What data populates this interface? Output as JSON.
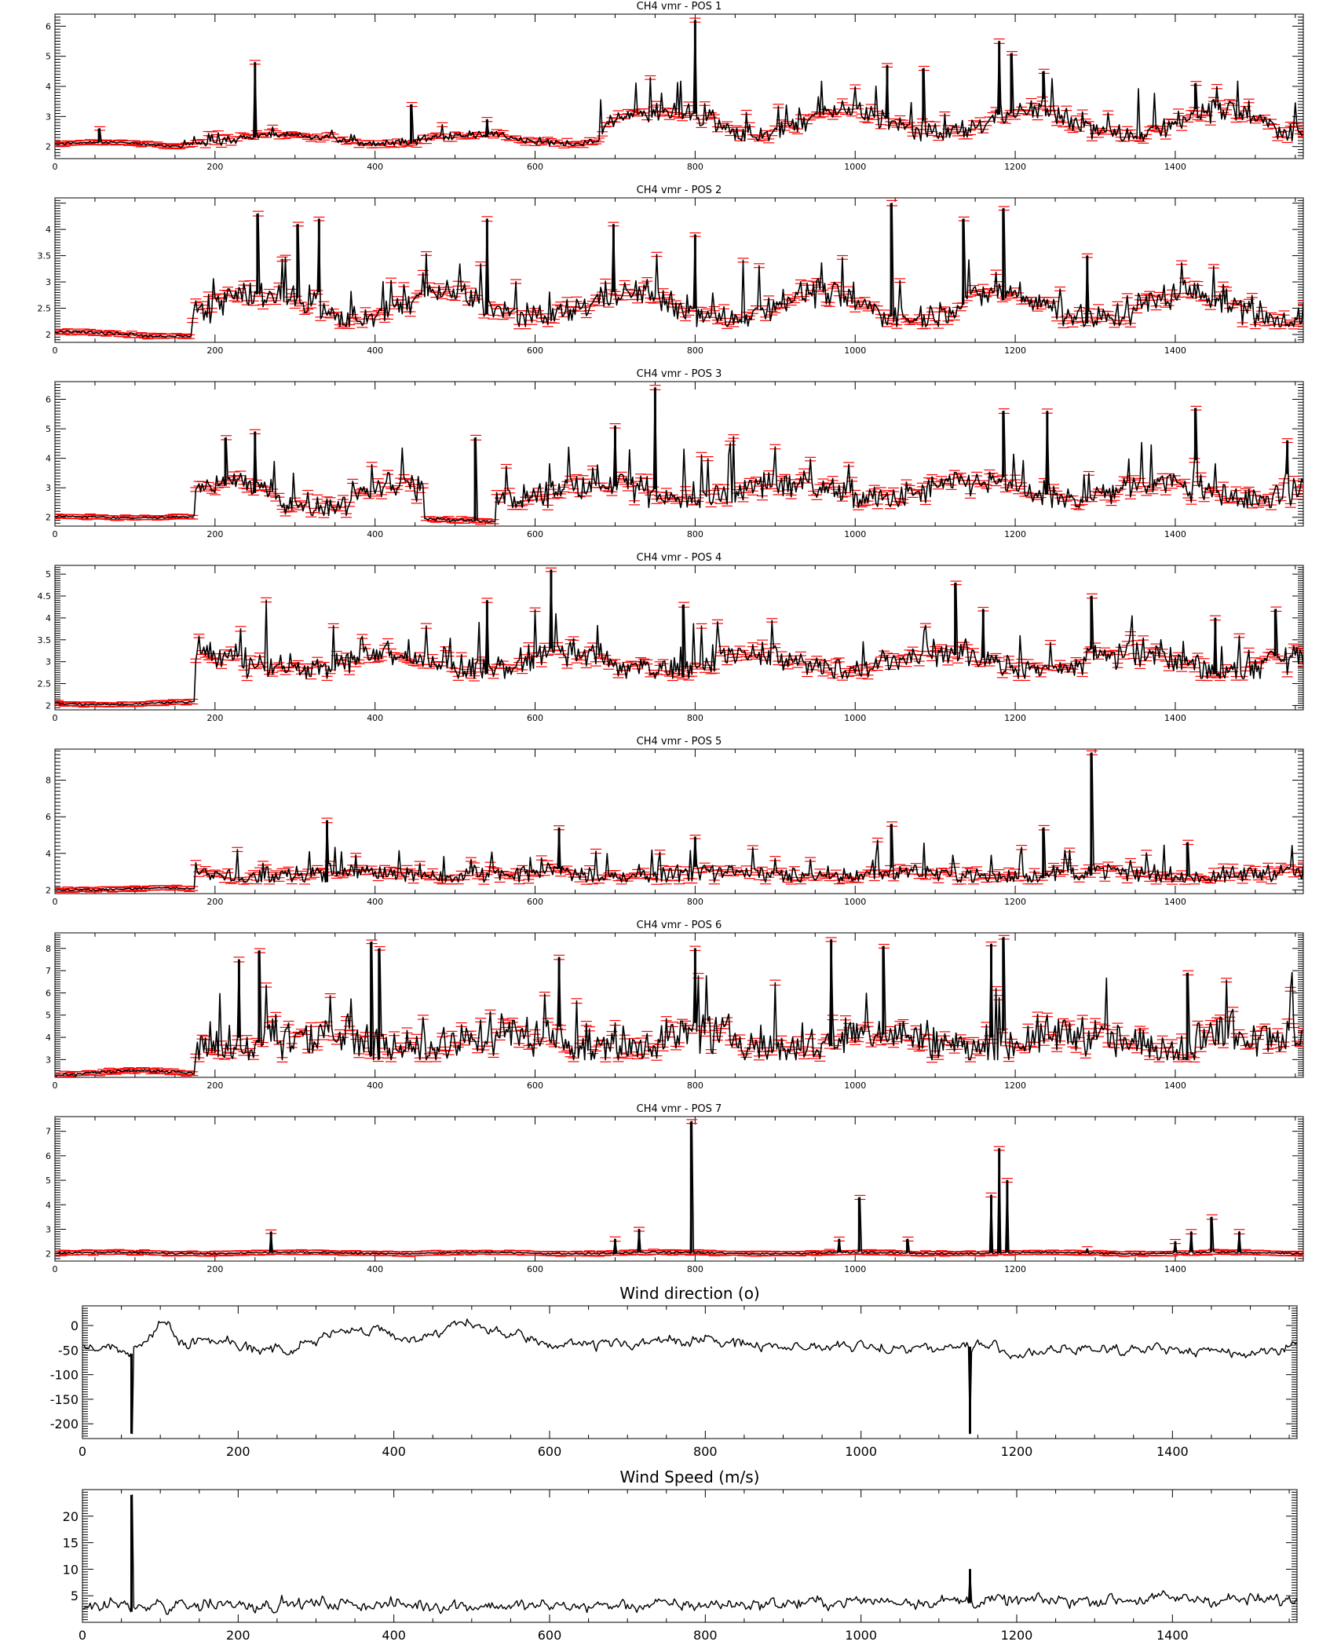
{
  "figure": {
    "background": "#ffffff",
    "line_color": "#000000",
    "errorbar_color": "#ff0000"
  },
  "chart_data": [
    {
      "type": "line",
      "title": "CH4 vmr - POS 1",
      "xlim": [
        0,
        1560
      ],
      "ylim": [
        1.6,
        6.4
      ],
      "xticks": [
        0,
        200,
        400,
        600,
        800,
        1000,
        1200,
        1400
      ],
      "yticks": [
        2,
        3,
        4,
        5,
        6
      ],
      "errorbars": true,
      "segments": [
        {
          "x": [
            0,
            160
          ],
          "y_range": [
            2.0,
            2.15
          ],
          "noise": 0.03
        },
        {
          "x": [
            160,
            680
          ],
          "y_range": [
            2.1,
            2.4
          ],
          "noise": 0.12
        },
        {
          "x": [
            680,
            1560
          ],
          "y_range": [
            2.4,
            3.2
          ],
          "noise": 0.35
        }
      ],
      "spikes": [
        [
          55,
          2.6
        ],
        [
          250,
          4.8
        ],
        [
          445,
          3.4
        ],
        [
          540,
          2.9
        ],
        [
          800,
          6.2
        ],
        [
          1040,
          4.7
        ],
        [
          1085,
          4.6
        ],
        [
          1180,
          5.5
        ],
        [
          1195,
          5.1
        ],
        [
          1235,
          4.5
        ],
        [
          1425,
          4.1
        ]
      ]
    },
    {
      "type": "line",
      "title": "CH4 vmr - POS 2",
      "xlim": [
        0,
        1560
      ],
      "ylim": [
        1.85,
        4.6
      ],
      "xticks": [
        0,
        200,
        400,
        600,
        800,
        1000,
        1200,
        1400
      ],
      "yticks": [
        2.0,
        2.5,
        3.0,
        3.5,
        4.0
      ],
      "errorbars": true,
      "segments": [
        {
          "x": [
            0,
            170
          ],
          "y_range": [
            1.97,
            2.05
          ],
          "noise": 0.03
        },
        {
          "x": [
            170,
            1560
          ],
          "y_range": [
            2.3,
            2.8
          ],
          "noise": 0.25
        }
      ],
      "spikes": [
        [
          253,
          4.3
        ],
        [
          303,
          4.1
        ],
        [
          330,
          4.2
        ],
        [
          540,
          4.2
        ],
        [
          698,
          4.1
        ],
        [
          800,
          3.9
        ],
        [
          1045,
          4.5
        ],
        [
          1135,
          4.2
        ],
        [
          1185,
          4.4
        ],
        [
          1290,
          3.5
        ]
      ]
    },
    {
      "type": "line",
      "title": "CH4 vmr - POS 3",
      "xlim": [
        0,
        1560
      ],
      "ylim": [
        1.7,
        6.6
      ],
      "xticks": [
        0,
        200,
        400,
        600,
        800,
        1000,
        1200,
        1400
      ],
      "yticks": [
        2,
        3,
        4,
        5,
        6
      ],
      "errorbars": true,
      "segments": [
        {
          "x": [
            0,
            175
          ],
          "y_range": [
            1.98,
            2.05
          ],
          "noise": 0.03
        },
        {
          "x": [
            175,
            460
          ],
          "y_range": [
            2.3,
            3.2
          ],
          "noise": 0.4
        },
        {
          "x": [
            460,
            550
          ],
          "y_range": [
            1.85,
            1.95
          ],
          "noise": 0.05
        },
        {
          "x": [
            550,
            1560
          ],
          "y_range": [
            2.6,
            3.2
          ],
          "noise": 0.45
        }
      ],
      "spikes": [
        [
          213,
          4.7
        ],
        [
          250,
          4.9
        ],
        [
          525,
          4.7
        ],
        [
          700,
          5.1
        ],
        [
          750,
          6.4
        ],
        [
          1185,
          5.6
        ],
        [
          1240,
          5.6
        ],
        [
          1425,
          5.7
        ],
        [
          1540,
          4.6
        ]
      ]
    },
    {
      "type": "line",
      "title": "CH4 vmr - POS 4",
      "xlim": [
        0,
        1560
      ],
      "ylim": [
        1.9,
        5.2
      ],
      "xticks": [
        0,
        200,
        400,
        600,
        800,
        1000,
        1200,
        1400
      ],
      "yticks": [
        2.0,
        2.5,
        3.0,
        3.5,
        4.0,
        4.5,
        5.0
      ],
      "errorbars": true,
      "segments": [
        {
          "x": [
            0,
            175
          ],
          "y_range": [
            2.02,
            2.08
          ],
          "noise": 0.02
        },
        {
          "x": [
            175,
            1560
          ],
          "y_range": [
            2.8,
            3.2
          ],
          "noise": 0.3
        }
      ],
      "spikes": [
        [
          540,
          4.4
        ],
        [
          620,
          5.1
        ],
        [
          785,
          4.3
        ],
        [
          1125,
          4.8
        ],
        [
          1160,
          4.2
        ],
        [
          1295,
          4.5
        ],
        [
          1450,
          4.0
        ],
        [
          1525,
          4.2
        ]
      ]
    },
    {
      "type": "line",
      "title": "CH4 vmr - POS 5",
      "xlim": [
        0,
        1560
      ],
      "ylim": [
        1.8,
        9.7
      ],
      "xticks": [
        0,
        200,
        400,
        600,
        800,
        1000,
        1200,
        1400
      ],
      "yticks": [
        2,
        4,
        6,
        8
      ],
      "errorbars": true,
      "segments": [
        {
          "x": [
            0,
            175
          ],
          "y_range": [
            2.0,
            2.1
          ],
          "noise": 0.05
        },
        {
          "x": [
            175,
            1560
          ],
          "y_range": [
            2.7,
            3.0
          ],
          "noise": 0.45
        }
      ],
      "spikes": [
        [
          340,
          5.8
        ],
        [
          630,
          5.4
        ],
        [
          800,
          4.9
        ],
        [
          1045,
          5.6
        ],
        [
          1235,
          5.4
        ],
        [
          1295,
          9.5
        ],
        [
          1415,
          4.6
        ]
      ]
    },
    {
      "type": "line",
      "title": "CH4 vmr - POS 6",
      "xlim": [
        0,
        1560
      ],
      "ylim": [
        2.2,
        8.7
      ],
      "xticks": [
        0,
        200,
        400,
        600,
        800,
        1000,
        1200,
        1400
      ],
      "yticks": [
        3,
        4,
        5,
        6,
        7,
        8
      ],
      "errorbars": true,
      "segments": [
        {
          "x": [
            0,
            175
          ],
          "y_range": [
            2.3,
            2.5
          ],
          "noise": 0.06
        },
        {
          "x": [
            175,
            1560
          ],
          "y_range": [
            3.5,
            4.2
          ],
          "noise": 0.85
        }
      ],
      "spikes": [
        [
          230,
          7.5
        ],
        [
          255,
          7.9
        ],
        [
          395,
          8.3
        ],
        [
          405,
          8.0
        ],
        [
          630,
          7.6
        ],
        [
          800,
          8.0
        ],
        [
          970,
          8.4
        ],
        [
          1035,
          8.1
        ],
        [
          1170,
          8.2
        ],
        [
          1185,
          8.5
        ],
        [
          1415,
          6.9
        ]
      ]
    },
    {
      "type": "line",
      "title": "CH4 vmr - POS 7",
      "xlim": [
        0,
        1560
      ],
      "ylim": [
        1.7,
        7.6
      ],
      "xticks": [
        0,
        200,
        400,
        600,
        800,
        1000,
        1200,
        1400
      ],
      "yticks": [
        2,
        3,
        4,
        5,
        6,
        7
      ],
      "errorbars": true,
      "segments": [
        {
          "x": [
            0,
            1560
          ],
          "y_range": [
            2.0,
            2.06
          ],
          "noise": 0.03
        }
      ],
      "spikes": [
        [
          270,
          2.9
        ],
        [
          700,
          2.6
        ],
        [
          730,
          3.0
        ],
        [
          795,
          7.4
        ],
        [
          980,
          2.6
        ],
        [
          1005,
          4.3
        ],
        [
          1065,
          2.6
        ],
        [
          1170,
          4.4
        ],
        [
          1180,
          6.3
        ],
        [
          1190,
          5.0
        ],
        [
          1290,
          2.2
        ],
        [
          1400,
          2.5
        ],
        [
          1420,
          2.9
        ],
        [
          1445,
          3.5
        ],
        [
          1480,
          2.9
        ]
      ]
    },
    {
      "type": "line",
      "title": "Wind direction (o)",
      "xlim": [
        0,
        1560
      ],
      "ylim": [
        -230,
        40
      ],
      "xticks": [
        0,
        200,
        400,
        600,
        800,
        1000,
        1200,
        1400
      ],
      "yticks": [
        -200,
        -150,
        -100,
        -50,
        0
      ],
      "errorbars": false,
      "anchors": [
        [
          0,
          -45
        ],
        [
          60,
          -50
        ],
        [
          90,
          -15
        ],
        [
          100,
          30
        ],
        [
          120,
          -40
        ],
        [
          160,
          -25
        ],
        [
          260,
          -55
        ],
        [
          300,
          -25
        ],
        [
          360,
          -5
        ],
        [
          420,
          -30
        ],
        [
          480,
          5
        ],
        [
          520,
          -10
        ],
        [
          600,
          -40
        ],
        [
          700,
          -35
        ],
        [
          780,
          -30
        ],
        [
          880,
          -40
        ],
        [
          1000,
          -45
        ],
        [
          1100,
          -45
        ],
        [
          1160,
          -40
        ],
        [
          1200,
          -60
        ],
        [
          1300,
          -45
        ],
        [
          1400,
          -50
        ],
        [
          1500,
          -55
        ],
        [
          1560,
          -40
        ]
      ],
      "noise": 9,
      "spikes": [
        [
          63,
          -220
        ],
        [
          1140,
          -220
        ]
      ]
    },
    {
      "type": "line",
      "title": "Wind Speed (m/s)",
      "xlim": [
        0,
        1560
      ],
      "ylim": [
        0,
        25
      ],
      "xticks": [
        0,
        200,
        400,
        600,
        800,
        1000,
        1200,
        1400
      ],
      "yticks": [
        5,
        10,
        15,
        20
      ],
      "errorbars": false,
      "anchors": [
        [
          0,
          3.0
        ],
        [
          300,
          3.5
        ],
        [
          600,
          3.0
        ],
        [
          900,
          3.5
        ],
        [
          1000,
          4.0
        ],
        [
          1200,
          4.0
        ],
        [
          1400,
          4.5
        ],
        [
          1560,
          4.0
        ]
      ],
      "noise": 1.0,
      "spikes": [
        [
          63,
          24
        ],
        [
          1140,
          10
        ]
      ]
    }
  ]
}
